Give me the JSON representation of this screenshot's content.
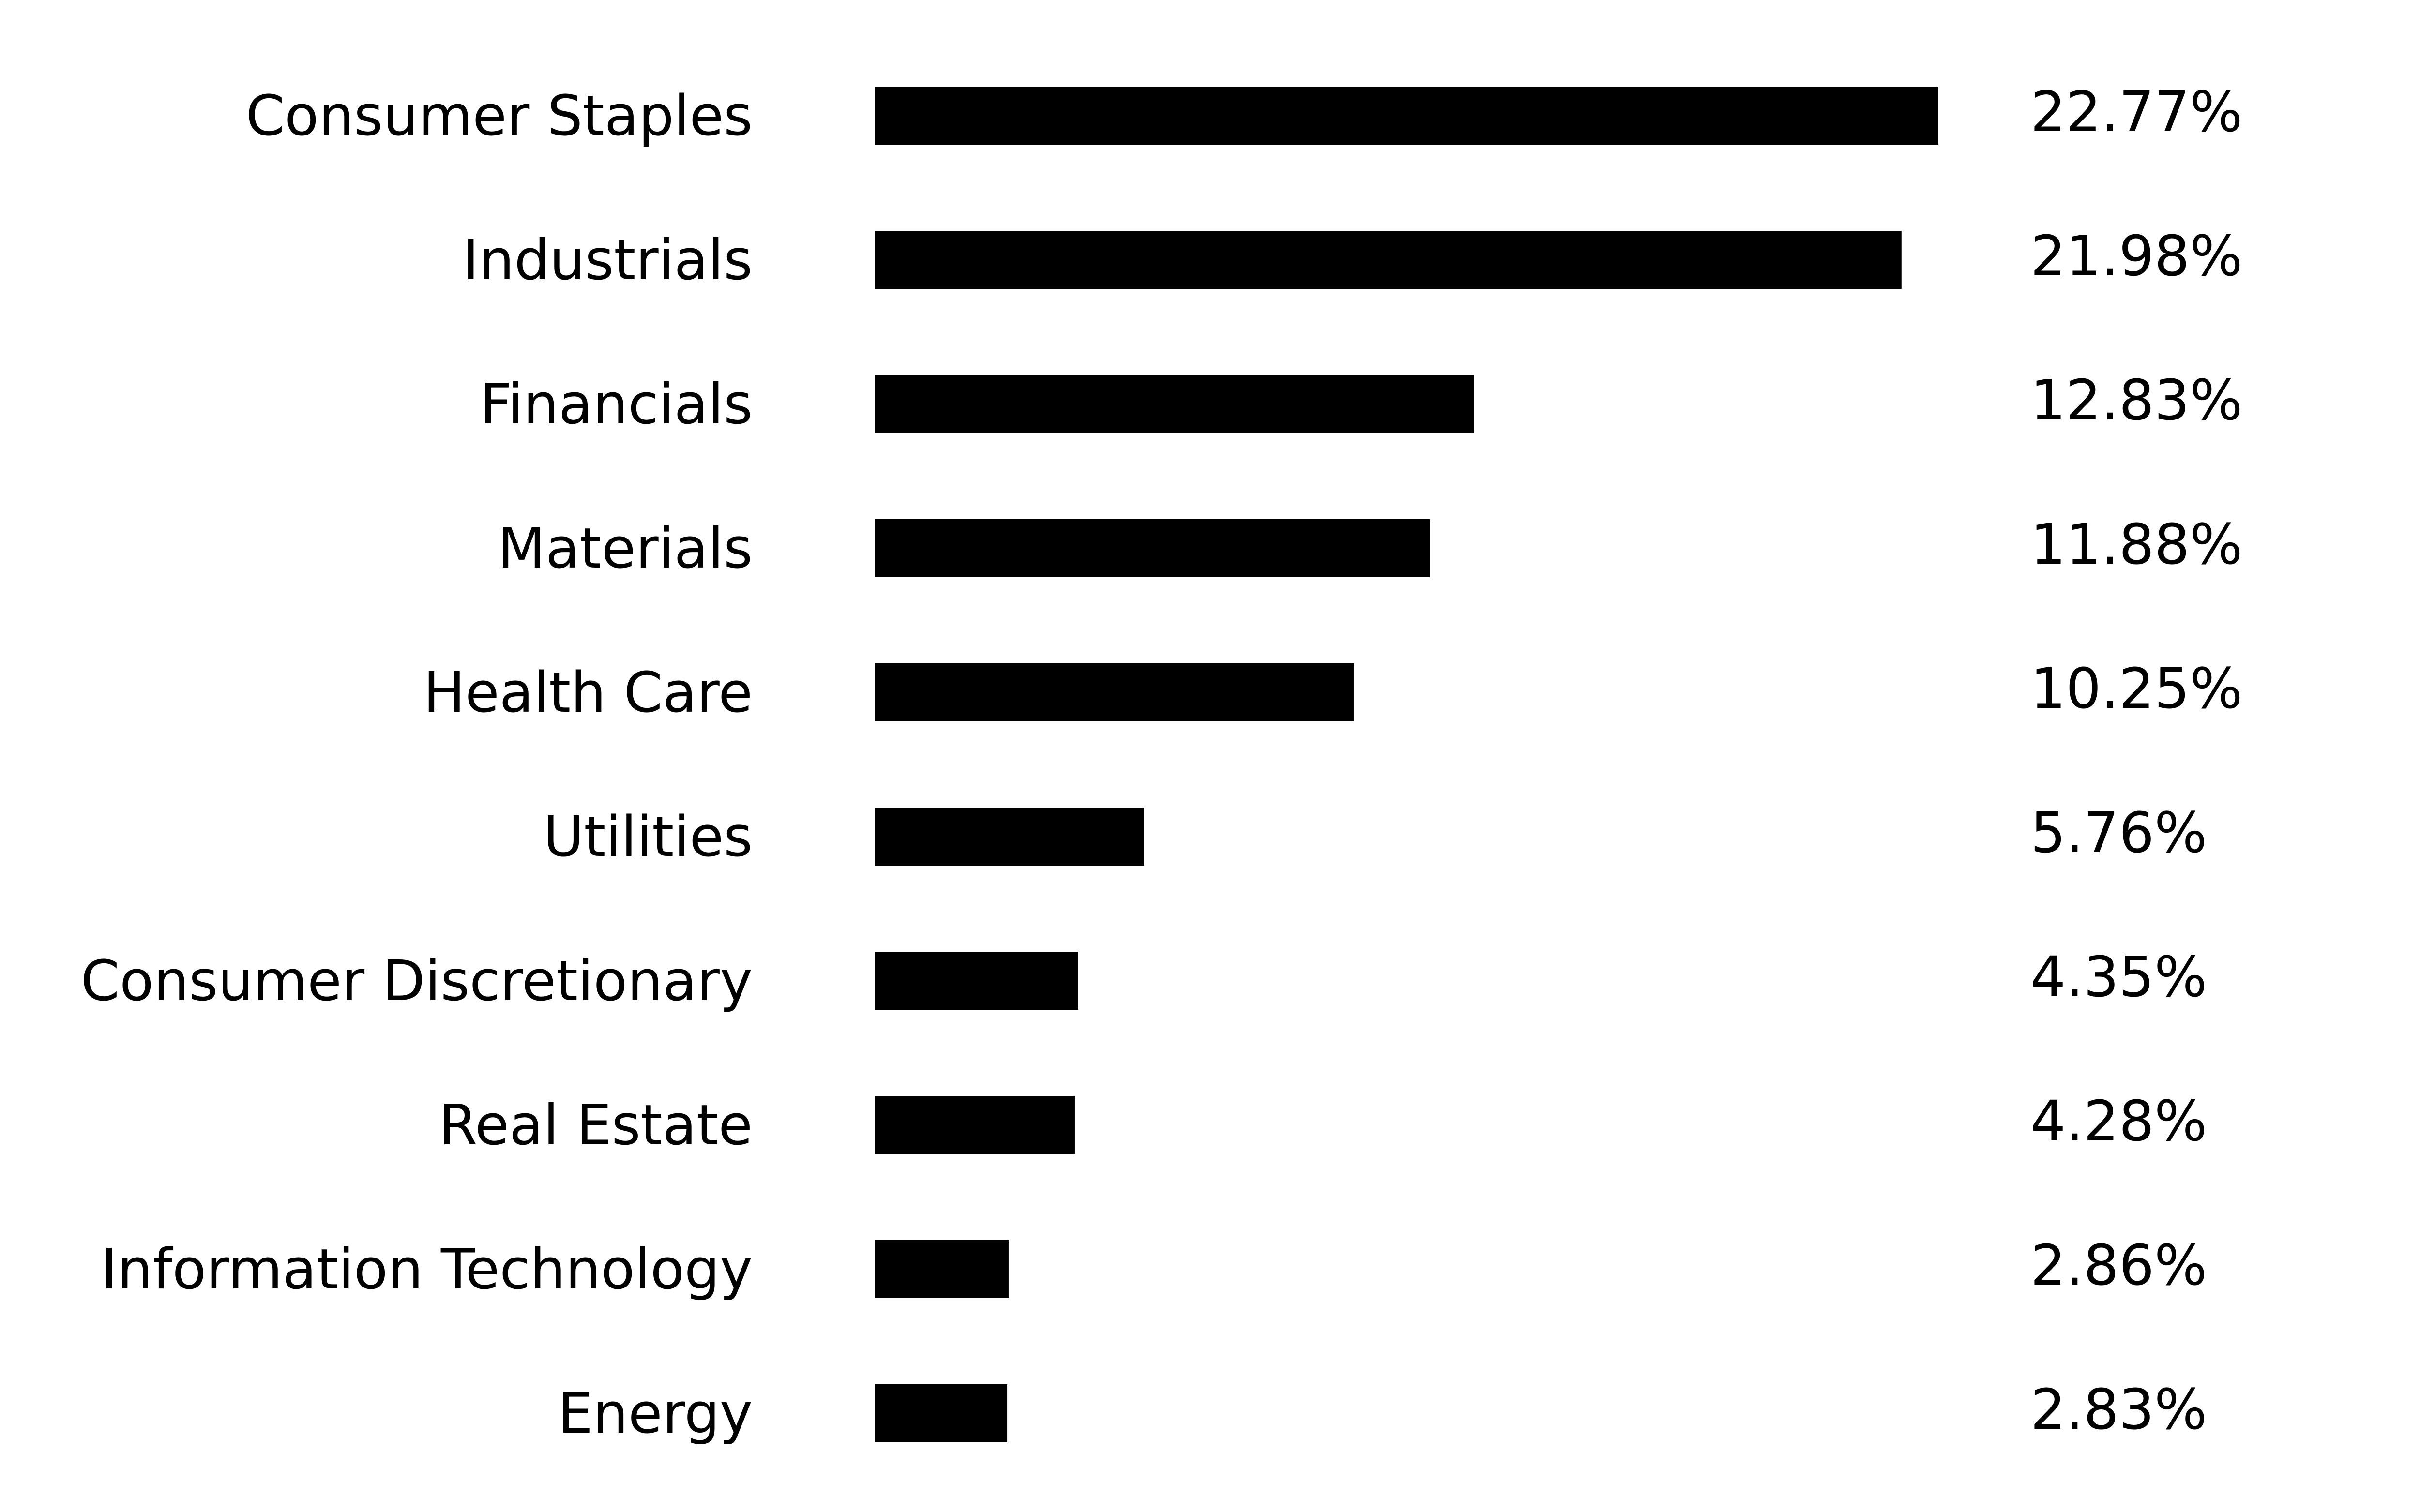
{
  "chart_data": {
    "type": "bar",
    "orientation": "horizontal",
    "title": "",
    "xlabel": "",
    "ylabel": "",
    "categories": [
      "Consumer Staples",
      "Industrials",
      "Financials",
      "Materials",
      "Health Care",
      "Utilities",
      "Consumer Discretionary",
      "Real Estate",
      "Information Technology",
      "Energy"
    ],
    "values": [
      22.77,
      21.98,
      12.83,
      11.88,
      10.25,
      5.76,
      4.35,
      4.28,
      2.86,
      2.83
    ],
    "value_labels": [
      "22.77%",
      "21.98%",
      "12.83%",
      "11.88%",
      "10.25%",
      "5.76%",
      "4.35%",
      "4.28%",
      "2.86%",
      "2.83%"
    ],
    "xlim": [
      0,
      22.77
    ],
    "grid": false,
    "legend": "none",
    "bar_color": "#000000"
  }
}
